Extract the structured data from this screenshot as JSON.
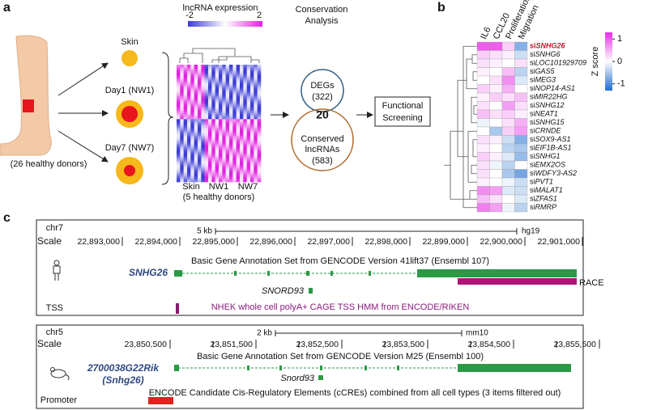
{
  "panel_a": {
    "label": "a",
    "donors": "(26 healthy donors)",
    "samples": [
      "Skin",
      "Day1 (NW1)",
      "Day7 (NW7)"
    ],
    "expression_scale": {
      "title": "lncRNA expression",
      "ticks": [
        -2,
        2
      ]
    },
    "heatmap_columns": [
      "Skin",
      "NW1",
      "NW7"
    ],
    "heatmap_note": "(5 healthy donors)",
    "conservation_title": [
      "Conservation",
      "Analysis"
    ],
    "venn": {
      "top": [
        "DEGs",
        "(322)"
      ],
      "overlap": "20",
      "bottom": [
        "Conserved",
        "lncRNAs",
        "(583)"
      ]
    },
    "screening": [
      "Functional",
      "Screening"
    ]
  },
  "panel_b": {
    "label": "b",
    "columns": [
      "IL6",
      "CCL20",
      "Proliferation",
      "Migration"
    ],
    "rows": [
      "siSNHG26",
      "siSNHG6",
      "siLOC101929709",
      "siGAS5",
      "siMEG3",
      "siNOP14-AS1",
      "siMIR22HG",
      "siSNHG12",
      "siNEAT1",
      "siSNHG15",
      "siCRNDE",
      "siSOX9-AS1",
      "siEIF1B-AS1",
      "siSNHG1",
      "siEMX2OS",
      "siWDFY3-AS2",
      "siPVT1",
      "siMALAT1",
      "siZFAS1",
      "siRMRP"
    ],
    "z_scores": [
      [
        1.0,
        1.0,
        0.3,
        -0.7
      ],
      [
        0.3,
        0.2,
        0.1,
        -0.3
      ],
      [
        0.2,
        0.1,
        0.0,
        0.2
      ],
      [
        0.1,
        0.0,
        0.4,
        -0.4
      ],
      [
        0.0,
        0.2,
        0.7,
        -0.2
      ],
      [
        0.3,
        0.1,
        0.5,
        0.0
      ],
      [
        0.1,
        0.3,
        0.2,
        0.4
      ],
      [
        0.2,
        0.0,
        0.6,
        0.2
      ],
      [
        0.4,
        0.2,
        0.3,
        0.1
      ],
      [
        -0.1,
        0.0,
        0.2,
        0.5
      ],
      [
        0.0,
        -0.5,
        0.3,
        0.6
      ],
      [
        0.2,
        0.1,
        -0.3,
        -0.7
      ],
      [
        0.1,
        0.0,
        -0.4,
        -0.5
      ],
      [
        0.3,
        0.1,
        -0.2,
        -0.6
      ],
      [
        0.2,
        -0.1,
        -0.4,
        0.0
      ],
      [
        0.2,
        0.0,
        -0.5,
        -0.8
      ],
      [
        0.1,
        0.0,
        -0.1,
        -0.3
      ],
      [
        0.7,
        0.6,
        -0.2,
        -0.3
      ],
      [
        0.4,
        0.2,
        0.0,
        -0.2
      ],
      [
        0.8,
        0.6,
        -0.1,
        -0.4
      ]
    ],
    "color_scale": {
      "title": "Z score",
      "zlim": [
        -1.3,
        1.3
      ],
      "ticks": [
        1,
        0,
        -1
      ]
    }
  },
  "panel_c": {
    "label": "c",
    "human": {
      "chrom": "chr7",
      "scale_label": "Scale",
      "scale_bar": "5 kb",
      "assembly": "hg19",
      "coordinates": [
        "22,893,000",
        "22,894,000",
        "22,895,000",
        "22,896,000",
        "22,897,000",
        "22,898,000",
        "22,899,000",
        "22,900,000",
        "22,901,000"
      ],
      "track_title": "Basic Gene Annotation Set from GENCODE Version 41lift37 (Ensembl 107)",
      "gene": "SNHG26",
      "snorna": "SNORD93",
      "race": "RACE",
      "tss_label": "TSS",
      "tss_track": "NHEK whole cell polyA+ CAGE TSS HMM from ENCODE/RIKEN"
    },
    "mouse": {
      "chrom": "chr5",
      "scale_label": "Scale",
      "scale_bar": "2 kb",
      "assembly": "mm10",
      "coordinates": [
        "23,850,500",
        "23,851,500",
        "23,852,500",
        "23,853,500",
        "23,854,500",
        "23,855,500"
      ],
      "track_title": "Basic Gene Annotation Set from GENCODE Version M25 (Ensembl 100)",
      "gene": [
        "2700038G22Rik",
        "(Snhg26)"
      ],
      "snorna": "Snord93",
      "promoter_label": "Promoter",
      "promoter_track": "ENCODE Candidate Cis-Regulatory Elements (cCREs) combined from all cell types (3 items filtered out)"
    }
  }
}
